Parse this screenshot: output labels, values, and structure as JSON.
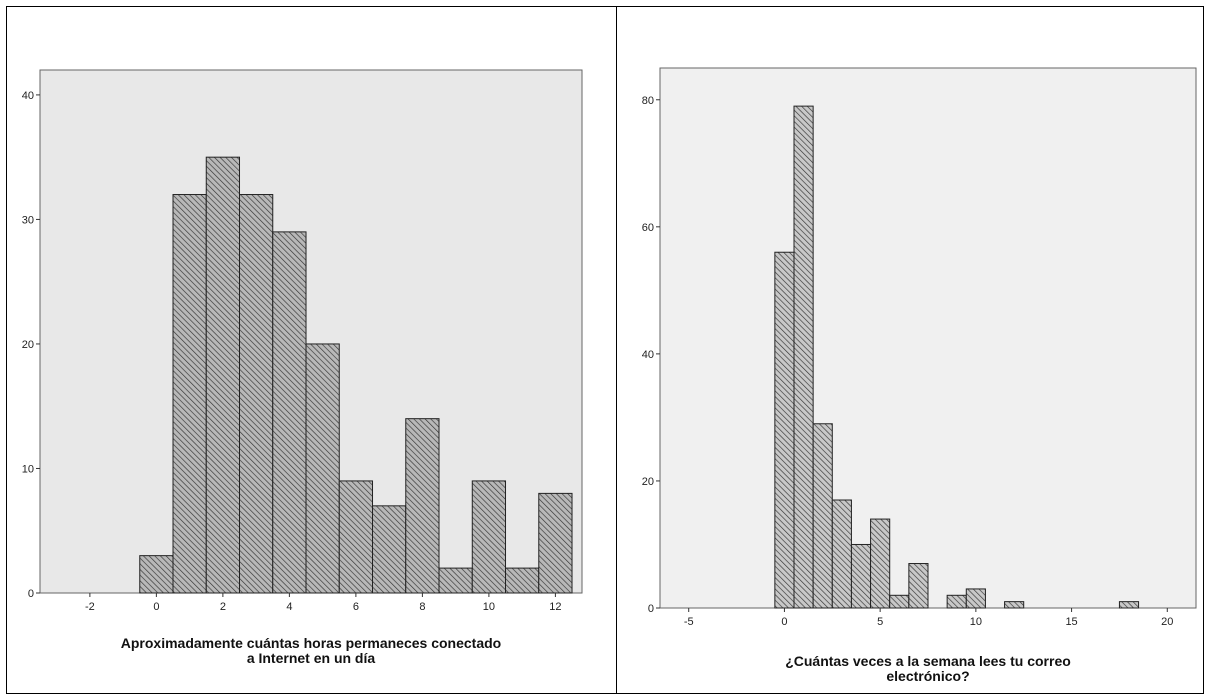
{
  "chart_data": [
    {
      "type": "bar",
      "subtype": "histogram",
      "xlabel": "Aproximadamente cuántas horas permaneces conectado a Internet en un día",
      "xlabel_lines": [
        "Aproximadamente cuántas horas permaneces conectado",
        "a Internet en un día"
      ],
      "ylabel": "",
      "xlim": [
        -3.5,
        12.8
      ],
      "ylim": [
        0,
        42
      ],
      "x_ticks": [
        -2,
        0,
        2,
        4,
        6,
        8,
        10,
        12
      ],
      "y_ticks": [
        0,
        10,
        20,
        30,
        40
      ],
      "bins": [
        {
          "x": 0,
          "value": 3
        },
        {
          "x": 1,
          "value": 32
        },
        {
          "x": 2,
          "value": 35
        },
        {
          "x": 3,
          "value": 32
        },
        {
          "x": 4,
          "value": 29
        },
        {
          "x": 5,
          "value": 20
        },
        {
          "x": 6,
          "value": 9
        },
        {
          "x": 7,
          "value": 7
        },
        {
          "x": 8,
          "value": 14
        },
        {
          "x": 9,
          "value": 2
        },
        {
          "x": 10,
          "value": 9
        },
        {
          "x": 11,
          "value": 2
        },
        {
          "x": 12,
          "value": 8
        }
      ],
      "bin_width": 1,
      "plot_background": "#e8e8e8",
      "bar_fill": "#b8b8b8",
      "bar_hatch": "diagonal",
      "grid": false
    },
    {
      "type": "bar",
      "subtype": "histogram",
      "xlabel": "¿Cuántas veces a la semana  lees tu correo electrónico?",
      "xlabel_lines": [
        "¿Cuántas veces a la semana  lees tu correo",
        "electrónico?"
      ],
      "ylabel": "",
      "xlim": [
        -6.5,
        21.5
      ],
      "ylim": [
        0,
        85
      ],
      "x_ticks": [
        -5,
        0,
        5,
        10,
        15,
        20
      ],
      "y_ticks": [
        0,
        20,
        40,
        60,
        80
      ],
      "bins": [
        {
          "x": 0,
          "value": 56
        },
        {
          "x": 1,
          "value": 79
        },
        {
          "x": 2,
          "value": 29
        },
        {
          "x": 3,
          "value": 17
        },
        {
          "x": 4,
          "value": 10
        },
        {
          "x": 5,
          "value": 14
        },
        {
          "x": 6,
          "value": 2
        },
        {
          "x": 7,
          "value": 7
        },
        {
          "x": 8,
          "value": 0
        },
        {
          "x": 9,
          "value": 2
        },
        {
          "x": 10,
          "value": 3
        },
        {
          "x": 11,
          "value": 0
        },
        {
          "x": 12,
          "value": 1
        },
        {
          "x": 13,
          "value": 0
        },
        {
          "x": 14,
          "value": 0
        },
        {
          "x": 15,
          "value": 0
        },
        {
          "x": 16,
          "value": 0
        },
        {
          "x": 17,
          "value": 0
        },
        {
          "x": 18,
          "value": 1
        }
      ],
      "bin_width": 1,
      "plot_background": "#f0f0f0",
      "bar_fill": "#c8c8c8",
      "bar_hatch": "diagonal",
      "grid": false
    }
  ]
}
